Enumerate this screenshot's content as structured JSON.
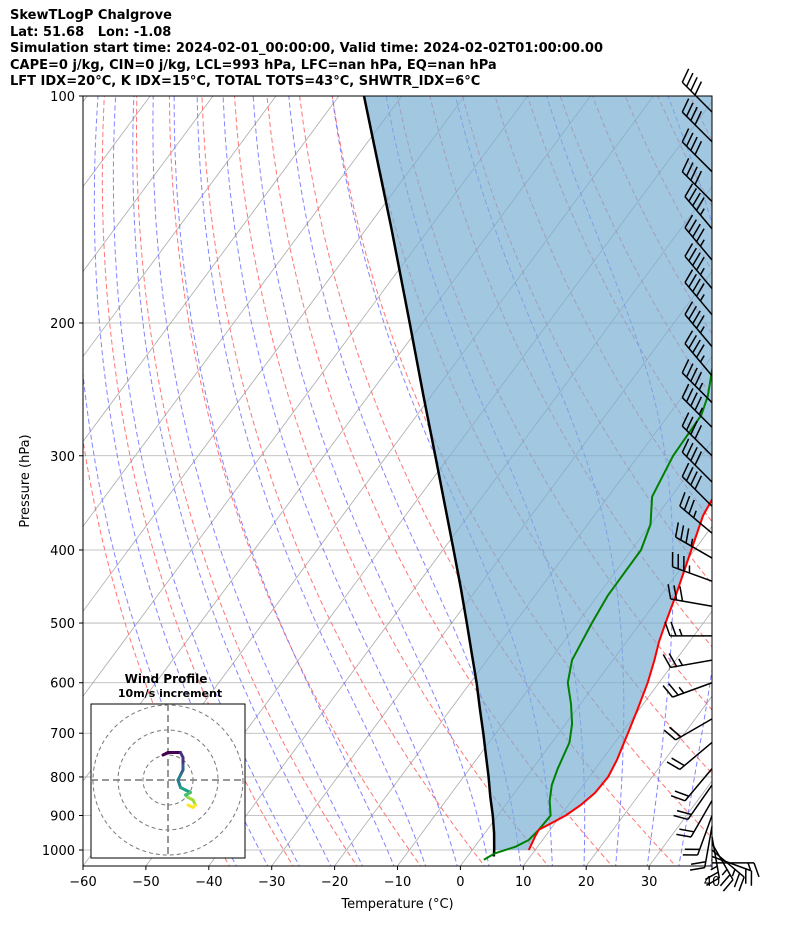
{
  "header": {
    "lines": [
      "SkewTLogP Chalgrove",
      "Lat: 51.68   Lon: -1.08",
      "Simulation start time: 2024-02-01_00:00:00, Valid time: 2024-02-02T01:00:00.00",
      "CAPE=0 j/kg, CIN=0 j/kg, LCL=993 hPa, LFC=nan hPa, EQ=nan hPa",
      "LFT IDX=20°C, K IDX=15°C, TOTAL TOTS=43°C, SHWTR_IDX=6°C"
    ]
  },
  "chart_data": {
    "type": "line",
    "xlabel": "Temperature (°C)",
    "ylabel": "Pressure (hPa)",
    "xlim": [
      -60,
      40
    ],
    "ylim": [
      1050,
      100
    ],
    "y_scale": "log",
    "x_ticks": [
      "−60",
      "−50",
      "−40",
      "−30",
      "−20",
      "−10",
      "0",
      "10",
      "20",
      "30",
      "40"
    ],
    "y_ticks": [
      "100",
      "200",
      "300",
      "400",
      "500",
      "600",
      "700",
      "800",
      "900",
      "1000"
    ],
    "grid": true,
    "colors": {
      "temperature": "#ff0000",
      "dewpoint": "#008000",
      "parcel": "#000000",
      "cin_fill": "#7bafd4",
      "dry_adiabat": "#ff6666",
      "moist_adiabat": "#6e6eff",
      "isotherm": "#aaaaaa"
    },
    "series": [
      {
        "points": [
          [
            1000,
            9
          ],
          [
            980,
            8.7
          ],
          [
            960,
            8.4
          ],
          [
            940,
            8.2
          ],
          [
            920,
            9.5
          ],
          [
            900,
            10.8
          ],
          [
            870,
            12.0
          ],
          [
            840,
            12.8
          ],
          [
            800,
            13.0
          ],
          [
            760,
            12.4
          ],
          [
            700,
            11.0
          ],
          [
            650,
            9.7
          ],
          [
            600,
            8.2
          ],
          [
            560,
            6.6
          ],
          [
            530,
            5.2
          ],
          [
            500,
            4.0
          ],
          [
            460,
            2.4
          ],
          [
            400,
            -0.5
          ],
          [
            360,
            -2.7
          ],
          [
            330,
            -3.5
          ],
          [
            300,
            -4.5
          ],
          [
            260,
            -7.0
          ],
          [
            230,
            -9.6
          ],
          [
            200,
            -13.0
          ],
          [
            185,
            -14.0
          ],
          [
            170,
            -14.2
          ],
          [
            160,
            -14.0
          ],
          [
            145,
            -12.8
          ],
          [
            135,
            -11.8
          ],
          [
            125,
            -10.3
          ],
          [
            115,
            -8.4
          ],
          [
            108,
            -5.2
          ],
          [
            100,
            -2.0
          ]
        ]
      },
      {
        "points": [
          [
            1030,
            3.0
          ],
          [
            1010,
            4.0
          ],
          [
            990,
            6.5
          ],
          [
            970,
            7.8
          ],
          [
            940,
            8.2
          ],
          [
            900,
            8.4
          ],
          [
            860,
            6.5
          ],
          [
            820,
            5.0
          ],
          [
            780,
            4.0
          ],
          [
            720,
            2.8
          ],
          [
            680,
            1.0
          ],
          [
            640,
            -1.5
          ],
          [
            600,
            -4.5
          ],
          [
            560,
            -6.5
          ],
          [
            500,
            -7.7
          ],
          [
            460,
            -8.4
          ],
          [
            400,
            -8.5
          ],
          [
            370,
            -10.0
          ],
          [
            340,
            -13.0
          ],
          [
            300,
            -14.5
          ],
          [
            265,
            -14.8
          ],
          [
            250,
            -16.0
          ],
          [
            230,
            -18.5
          ],
          [
            200,
            -21.5
          ],
          [
            180,
            -22.6
          ],
          [
            160,
            -22.3
          ],
          [
            150,
            -21.7
          ],
          [
            140,
            -20.0
          ],
          [
            130,
            -17.0
          ],
          [
            120,
            -15.5
          ],
          [
            115,
            -15.5
          ],
          [
            108,
            -15.8
          ],
          [
            100,
            -13.5
          ]
        ]
      },
      {
        "points": [
          [
            1020,
            4.2
          ],
          [
            1000,
            3.5
          ],
          [
            950,
            1.5
          ],
          [
            900,
            -0.8
          ],
          [
            850,
            -3.4
          ],
          [
            800,
            -6.0
          ],
          [
            750,
            -8.9
          ],
          [
            700,
            -12.0
          ],
          [
            650,
            -15.4
          ],
          [
            600,
            -19.0
          ],
          [
            550,
            -23.1
          ],
          [
            500,
            -27.6
          ],
          [
            450,
            -32.6
          ],
          [
            400,
            -38.3
          ],
          [
            350,
            -44.8
          ],
          [
            300,
            -52.3
          ],
          [
            250,
            -61.2
          ],
          [
            200,
            -72.0
          ],
          [
            150,
            -86.0
          ],
          [
            100,
            -106.0
          ]
        ]
      }
    ],
    "wind_barbs": {
      "pressures": [
        1040,
        1020,
        1000,
        980,
        960,
        930,
        900,
        860,
        820,
        780,
        720,
        670,
        600,
        560,
        520,
        475,
        440,
        410,
        380,
        350,
        325,
        300,
        275,
        255,
        235,
        215,
        195,
        180,
        165,
        150,
        138,
        126,
        115,
        105
      ],
      "speeds_kt": [
        15,
        20,
        25,
        25,
        25,
        20,
        20,
        20,
        20,
        20,
        20,
        20,
        25,
        25,
        25,
        30,
        35,
        35,
        35,
        40,
        40,
        40,
        45,
        45,
        45,
        45,
        45,
        45,
        45,
        45,
        40,
        40,
        40,
        40
      ],
      "directions_deg": [
        90,
        110,
        130,
        150,
        170,
        190,
        200,
        210,
        215,
        220,
        230,
        240,
        250,
        260,
        270,
        280,
        290,
        300,
        310,
        315,
        315,
        315,
        315,
        315,
        320,
        320,
        320,
        320,
        320,
        320,
        315,
        315,
        315,
        315
      ]
    },
    "hodograph": {
      "title": "Wind Profile",
      "subtitle": "10m/s increment",
      "uv": [
        [
          8,
          -10
        ],
        [
          10,
          -11
        ],
        [
          11,
          -10
        ],
        [
          10,
          -8
        ],
        [
          8,
          -7
        ],
        [
          7,
          -6
        ],
        [
          9,
          -5
        ],
        [
          7,
          -4
        ],
        [
          5,
          -3
        ],
        [
          4,
          0
        ],
        [
          5,
          2
        ],
        [
          6,
          4
        ],
        [
          6,
          6
        ],
        [
          6,
          9
        ],
        [
          5,
          11
        ],
        [
          2,
          11
        ],
        [
          0,
          11
        ],
        [
          -2,
          10
        ]
      ]
    }
  }
}
